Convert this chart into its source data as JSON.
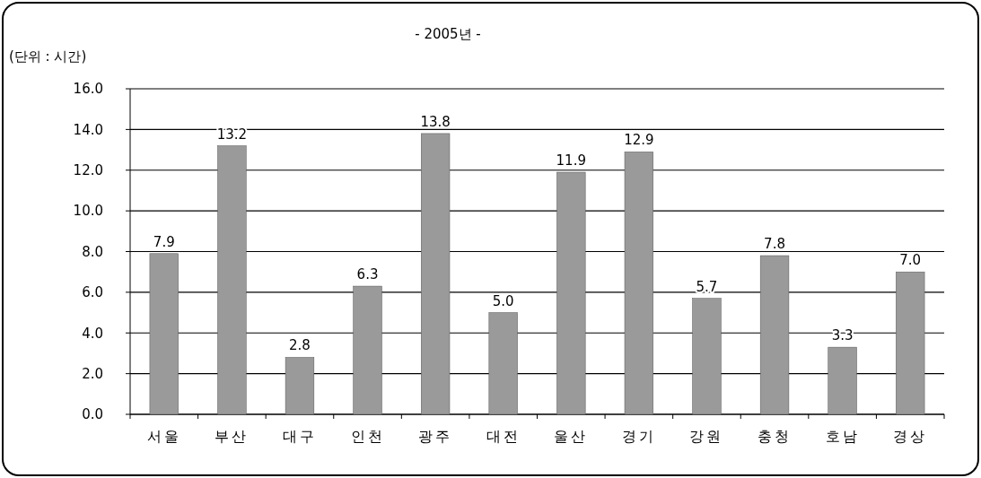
{
  "chart_data": {
    "type": "bar",
    "title": "- 2005년 -",
    "annotations": [
      "(단위 : 시간)"
    ],
    "categories": [
      "서울",
      "부산",
      "대구",
      "인천",
      "광주",
      "대전",
      "울산",
      "경기",
      "강원",
      "충청",
      "호남",
      "경상"
    ],
    "values": [
      7.9,
      13.2,
      2.8,
      6.3,
      13.8,
      5.0,
      11.9,
      12.9,
      5.7,
      7.8,
      3.3,
      7.0
    ],
    "value_labels": [
      "7.9",
      "13.2",
      "2.8",
      "6.3",
      "13.8",
      "5.0",
      "11.9",
      "12.9",
      "5.7",
      "7.8",
      "3.3",
      "7.0"
    ],
    "color": "#9a9a9a",
    "ylim": [
      0,
      16
    ],
    "yticks": [
      {
        "value": 0,
        "label": "0.0"
      },
      {
        "value": 2,
        "label": "2.0"
      },
      {
        "value": 4,
        "label": "4.0"
      },
      {
        "value": 6,
        "label": "6.0"
      },
      {
        "value": 8,
        "label": "8.0"
      },
      {
        "value": 10,
        "label": "10.0"
      },
      {
        "value": 12,
        "label": "12.0"
      },
      {
        "value": 14,
        "label": "14.0"
      },
      {
        "value": 16,
        "label": "16.0"
      }
    ],
    "grid": "y"
  }
}
